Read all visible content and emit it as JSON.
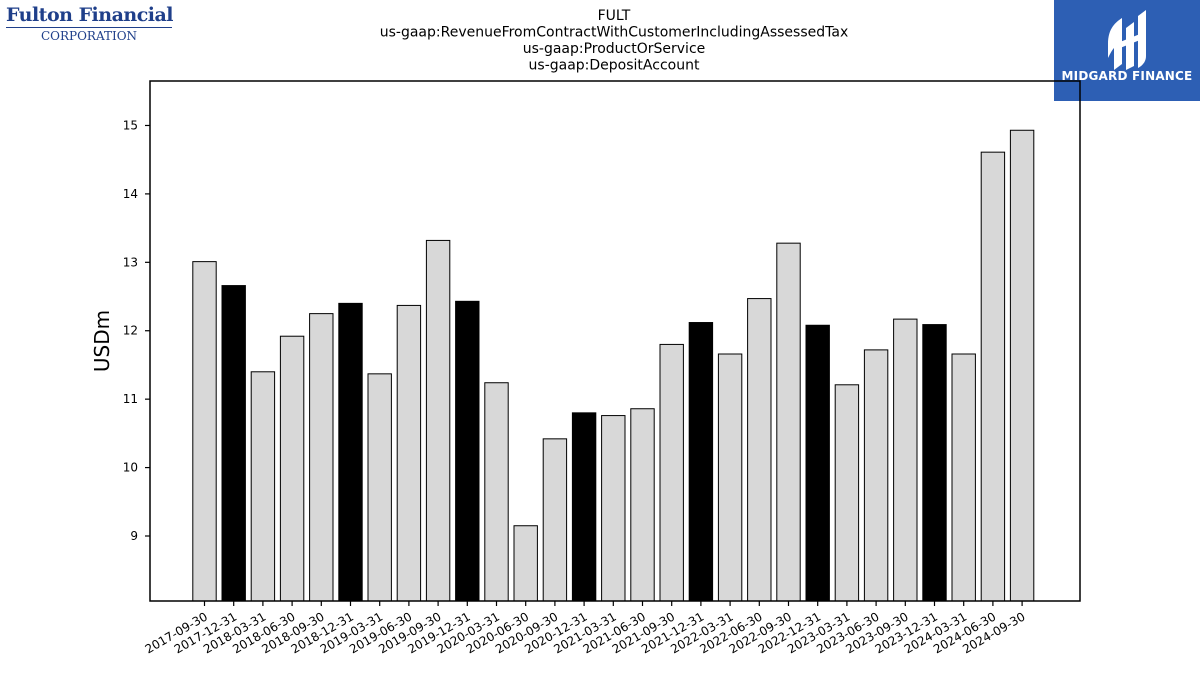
{
  "header": {
    "left_logo_line1": "Fulton Financial",
    "left_logo_line2": "Corporation",
    "right_logo_text": "MIDGARD FINANCE"
  },
  "chart_data": {
    "type": "bar",
    "title_lines": [
      "FULT",
      "us-gaap:RevenueFromContractWithCustomerIncludingAssessedTax",
      "us-gaap:ProductOrService",
      "us-gaap:DepositAccount"
    ],
    "xlabel": "",
    "ylabel": "USDm",
    "ylim": [
      8.05,
      15.65
    ],
    "yticks": [
      9,
      10,
      11,
      12,
      13,
      14,
      15
    ],
    "categories": [
      "2017-09-30",
      "2017-12-31",
      "2018-03-31",
      "2018-06-30",
      "2018-09-30",
      "2018-12-31",
      "2019-03-31",
      "2019-06-30",
      "2019-09-30",
      "2019-12-31",
      "2020-03-31",
      "2020-06-30",
      "2020-09-30",
      "2020-12-31",
      "2021-03-31",
      "2021-06-30",
      "2021-09-30",
      "2021-12-31",
      "2022-03-31",
      "2022-06-30",
      "2022-09-30",
      "2022-12-31",
      "2023-03-31",
      "2023-06-30",
      "2023-09-30",
      "2023-12-31",
      "2024-03-31",
      "2024-06-30",
      "2024-09-30"
    ],
    "values": [
      13.01,
      12.66,
      11.4,
      11.92,
      12.25,
      12.4,
      11.37,
      12.37,
      13.32,
      12.43,
      11.24,
      9.15,
      10.42,
      10.8,
      10.76,
      10.86,
      11.8,
      12.12,
      11.66,
      12.47,
      13.28,
      12.08,
      11.21,
      11.72,
      12.17,
      12.09,
      11.66,
      14.61,
      14.93
    ],
    "highlight": [
      false,
      true,
      false,
      false,
      false,
      true,
      false,
      false,
      false,
      true,
      false,
      false,
      false,
      true,
      false,
      false,
      false,
      true,
      false,
      false,
      false,
      true,
      false,
      false,
      false,
      true,
      false,
      false,
      false
    ],
    "colors": {
      "bar": "#d8d8d8",
      "highlight": "#000000",
      "edge": "#000000"
    }
  }
}
